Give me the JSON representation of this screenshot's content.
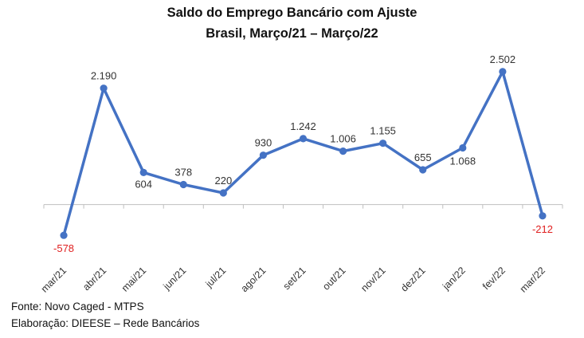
{
  "header": {
    "title_line1": "Saldo do Emprego Bancário com Ajuste",
    "title_line2": "Brasil, Março/21 – Março/22"
  },
  "footer": {
    "source": "Fonte: Novo Caged - MTPS",
    "credit": "Elaboração: DIEESE – Rede Bancários"
  },
  "chart_data": {
    "type": "line",
    "title": "Saldo do Emprego Bancário com Ajuste",
    "subtitle": "Brasil, Março/21 – Março/22",
    "categories": [
      "mar/21",
      "abr/21",
      "mai/21",
      "jun/21",
      "jul/21",
      "ago/21",
      "set/21",
      "out/21",
      "nov/21",
      "dez/21",
      "jan/22",
      "fev/22",
      "mar/22"
    ],
    "series": [
      {
        "values": [
          -578,
          2190,
          604,
          378,
          220,
          930,
          1242,
          1006,
          1155,
          655,
          1068,
          2502,
          -212
        ]
      }
    ],
    "data_labels": [
      "-578",
      "2.190",
      "604",
      "378",
      "220",
      "930",
      "1.242",
      "1.006",
      "1.155",
      "655",
      "1.068",
      "2.502",
      "-212"
    ],
    "ylim": [
      -1100,
      3100
    ],
    "grid": false,
    "line_color": "#4472C4",
    "negative_label_color": "#E02020"
  }
}
